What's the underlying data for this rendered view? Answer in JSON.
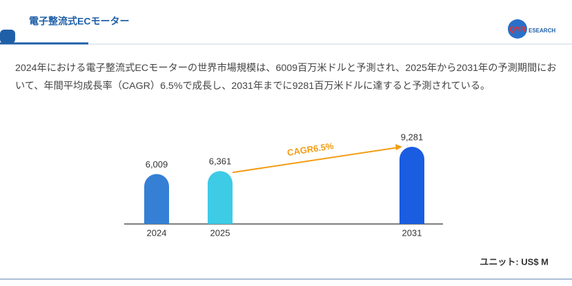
{
  "header": {
    "title": "電子整流式ECモーター",
    "logo_mark": "QYR",
    "logo_text": "ESEARCH"
  },
  "description": "2024年における電子整流式ECモーターの世界市場規模は、6009百万米ドルと予測され、2025年から2031年の予測期間において、年間平均成長率（CAGR）6.5%で成長し、2031年までに9281百万米ドルに達すると予測されている。",
  "chart_data": {
    "type": "bar",
    "categories": [
      "2024",
      "2025",
      "2031"
    ],
    "values": [
      6009,
      6361,
      9281
    ],
    "value_labels": [
      "6,009",
      "6,361",
      "9,281"
    ],
    "colors": [
      "#3580d4",
      "#3ecbe6",
      "#1a5de0"
    ],
    "annotation": "CAGR6.5%",
    "unit": "ユニット: US$ M"
  }
}
